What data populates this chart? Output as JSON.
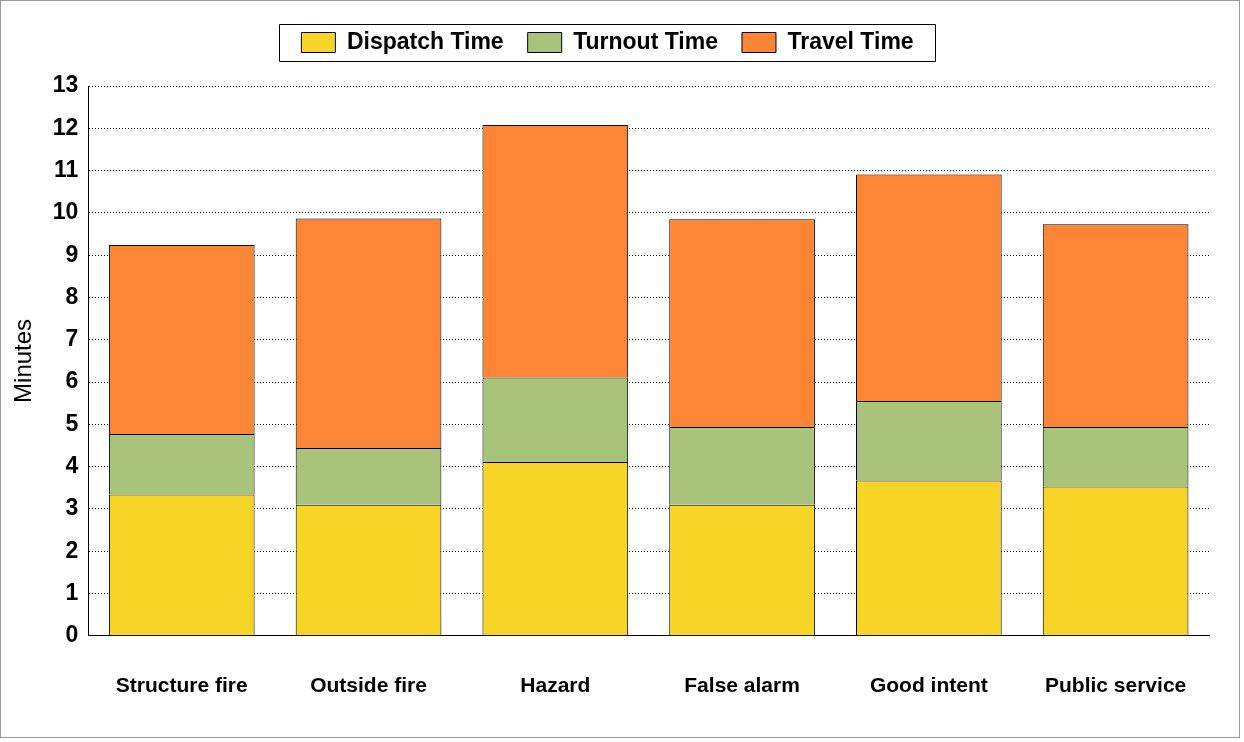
{
  "chart_data": {
    "type": "bar",
    "stacked": true,
    "ylabel": "Minutes",
    "categories": [
      "Structure fire",
      "Outside fire",
      "Hazard",
      "False alarm",
      "Good intent",
      "Public service"
    ],
    "series": [
      {
        "name": "Dispatch Time",
        "color": "#f7d527",
        "values": [
          3.34,
          3.1,
          4.11,
          3.1,
          3.67,
          3.53
        ]
      },
      {
        "name": "Turnout Time",
        "color": "#a9c47a",
        "values": [
          1.43,
          1.34,
          2.0,
          1.84,
          1.88,
          1.41
        ]
      },
      {
        "name": "Travel Time",
        "color": "#fd8536",
        "values": [
          4.47,
          5.43,
          5.97,
          4.91,
          5.36,
          4.79
        ]
      }
    ],
    "ylim": [
      0,
      13
    ],
    "yticks": [
      0,
      1,
      2,
      3,
      4,
      5,
      6,
      7,
      8,
      9,
      10,
      11,
      12,
      13
    ],
    "grid": "y",
    "legend": "top"
  }
}
